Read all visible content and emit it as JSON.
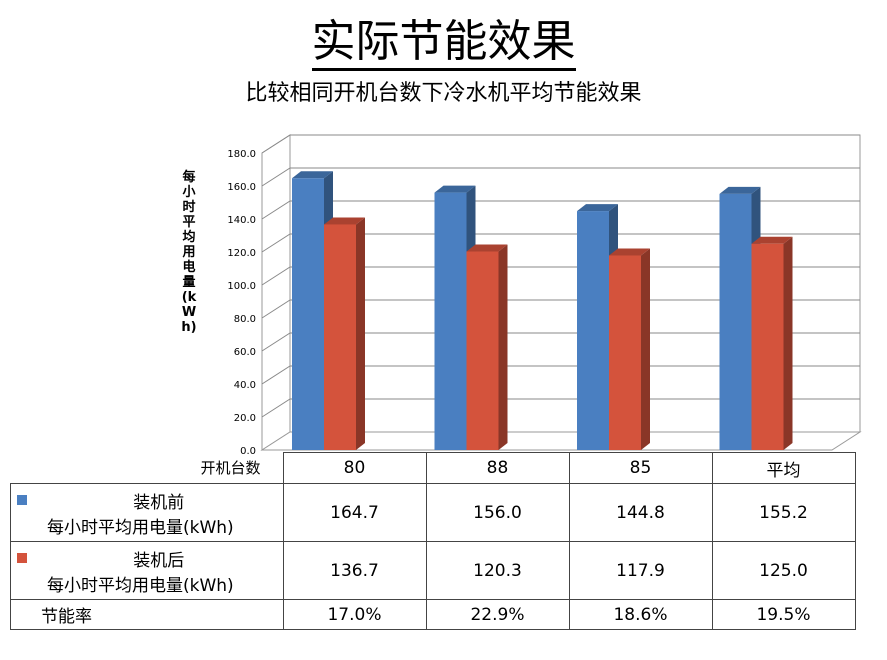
{
  "title": "实际节能效果",
  "subtitle": "比较相同开机台数下冷水机平均节能效果",
  "table": {
    "header_label": "开机台数",
    "columns": [
      "80",
      "88",
      "85",
      "平均"
    ],
    "rows": [
      {
        "name_line1": "装机前",
        "name_line2": "每小时平均用电量(kWh)",
        "color": "#4a7fc1",
        "values": [
          "164.7",
          "156.0",
          "144.8",
          "155.2"
        ]
      },
      {
        "name_line1": "装机后",
        "name_line2": "每小时平均用电量(kWh)",
        "color": "#d4533c",
        "values": [
          "136.7",
          "120.3",
          "117.9",
          "125.0"
        ]
      },
      {
        "name_line1": "节能率",
        "values": [
          "17.0%",
          "22.9%",
          "18.6%",
          "19.5%"
        ]
      }
    ]
  },
  "chart_data": {
    "type": "bar",
    "categories": [
      "80",
      "88",
      "85",
      "平均"
    ],
    "series": [
      {
        "name": "装机前 每小时平均用电量(kWh)",
        "values": [
          164.7,
          156.0,
          144.8,
          155.2
        ],
        "color": "#4a7fc1"
      },
      {
        "name": "装机后 每小时平均用电量(kWh)",
        "values": [
          136.7,
          120.3,
          117.9,
          125.0
        ],
        "color": "#d4533c"
      }
    ],
    "ylabel": "每小时平均用电量(kWh)",
    "xlabel": "开机台数",
    "ylim": [
      0,
      180
    ],
    "yticks": [
      "0.0",
      "20.0",
      "40.0",
      "60.0",
      "80.0",
      "100.0",
      "120.0",
      "140.0",
      "160.0",
      "180.0"
    ],
    "grid": true,
    "style": "3d-column"
  }
}
